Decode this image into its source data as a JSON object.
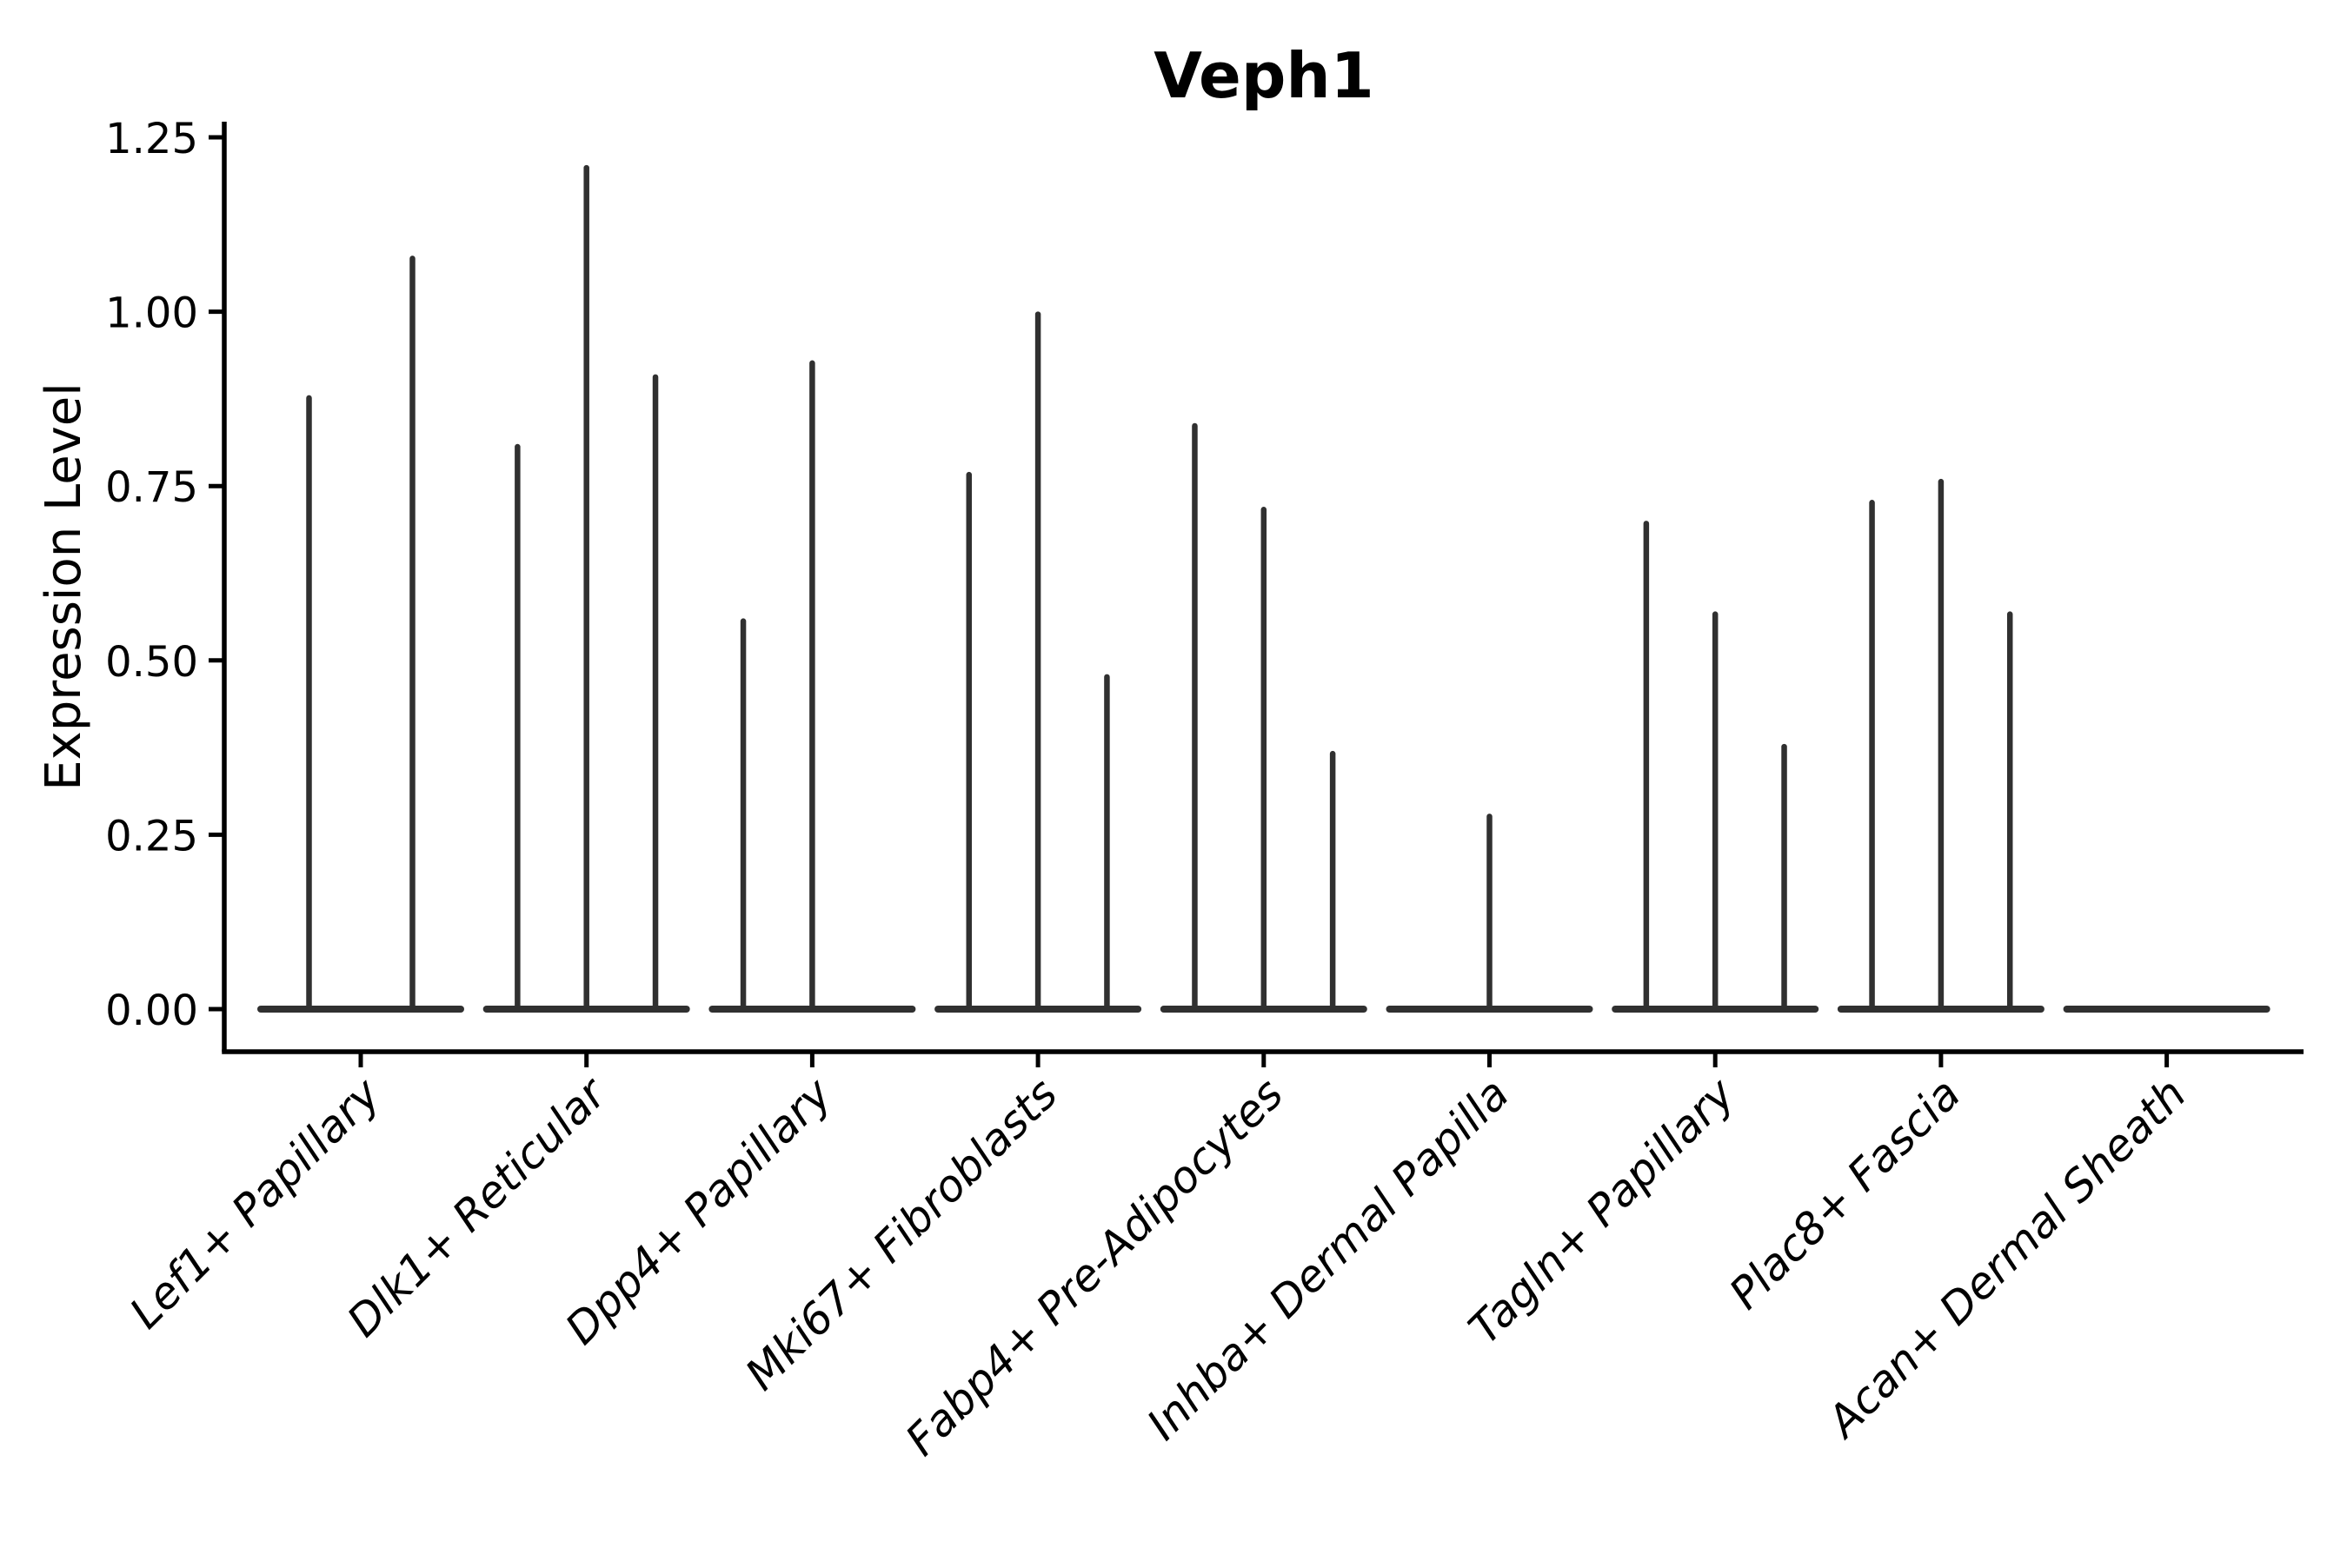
{
  "page": {
    "background_color": "#ffffff"
  },
  "chart_data": {
    "type": "violin",
    "title": "Veph1",
    "ylabel": "Expression Level",
    "xlabel": "",
    "grid": false,
    "legend": "none",
    "ylim": [
      -0.06,
      1.27
    ],
    "y_ticks": {
      "values": [
        0.0,
        0.25,
        0.5,
        0.75,
        1.0,
        1.25
      ],
      "labels": [
        "0.00",
        "0.25",
        "0.50",
        "0.75",
        "1.00",
        "1.25"
      ]
    },
    "x_tick_rotation_deg": 45,
    "categories": [
      "Lef1+ Papillary",
      "Dlk1+ Reticular",
      "Dpp4+ Papillary",
      "Mki67+ Fibroblasts",
      "Fabp4+ Pre-Adipocytes",
      "Inhba+ Dermal Papilla",
      "Tagln+ Papillary",
      "Plac8+ Fascia",
      "Acan+ Dermal Sheath"
    ],
    "series": [
      {
        "category": "Lef1+ Papillary",
        "violin_max_values": [
          0.88,
          1.08
        ]
      },
      {
        "category": "Dlk1+ Reticular",
        "violin_max_values": [
          0.81,
          1.21,
          0.91
        ]
      },
      {
        "category": "Dpp4+ Papillary",
        "violin_max_values": [
          0.56,
          0.93,
          0.0
        ]
      },
      {
        "category": "Mki67+ Fibroblasts",
        "violin_max_values": [
          0.77,
          1.0,
          0.48
        ]
      },
      {
        "category": "Fabp4+ Pre-Adipocytes",
        "violin_max_values": [
          0.84,
          0.72,
          0.37
        ]
      },
      {
        "category": "Inhba+ Dermal Papilla",
        "violin_max_values": [
          0.0,
          0.28,
          0.0
        ]
      },
      {
        "category": "Tagln+ Papillary",
        "violin_max_values": [
          0.7,
          0.57,
          0.38
        ]
      },
      {
        "category": "Plac8+ Fascia",
        "violin_max_values": [
          0.73,
          0.76,
          0.57
        ]
      },
      {
        "category": "Acan+ Dermal Sheath",
        "violin_max_values": [
          0.0,
          0.0,
          0.0
        ]
      }
    ],
    "colors": {
      "violin": "#303030",
      "axis": "#000000",
      "text": "#000000"
    }
  }
}
